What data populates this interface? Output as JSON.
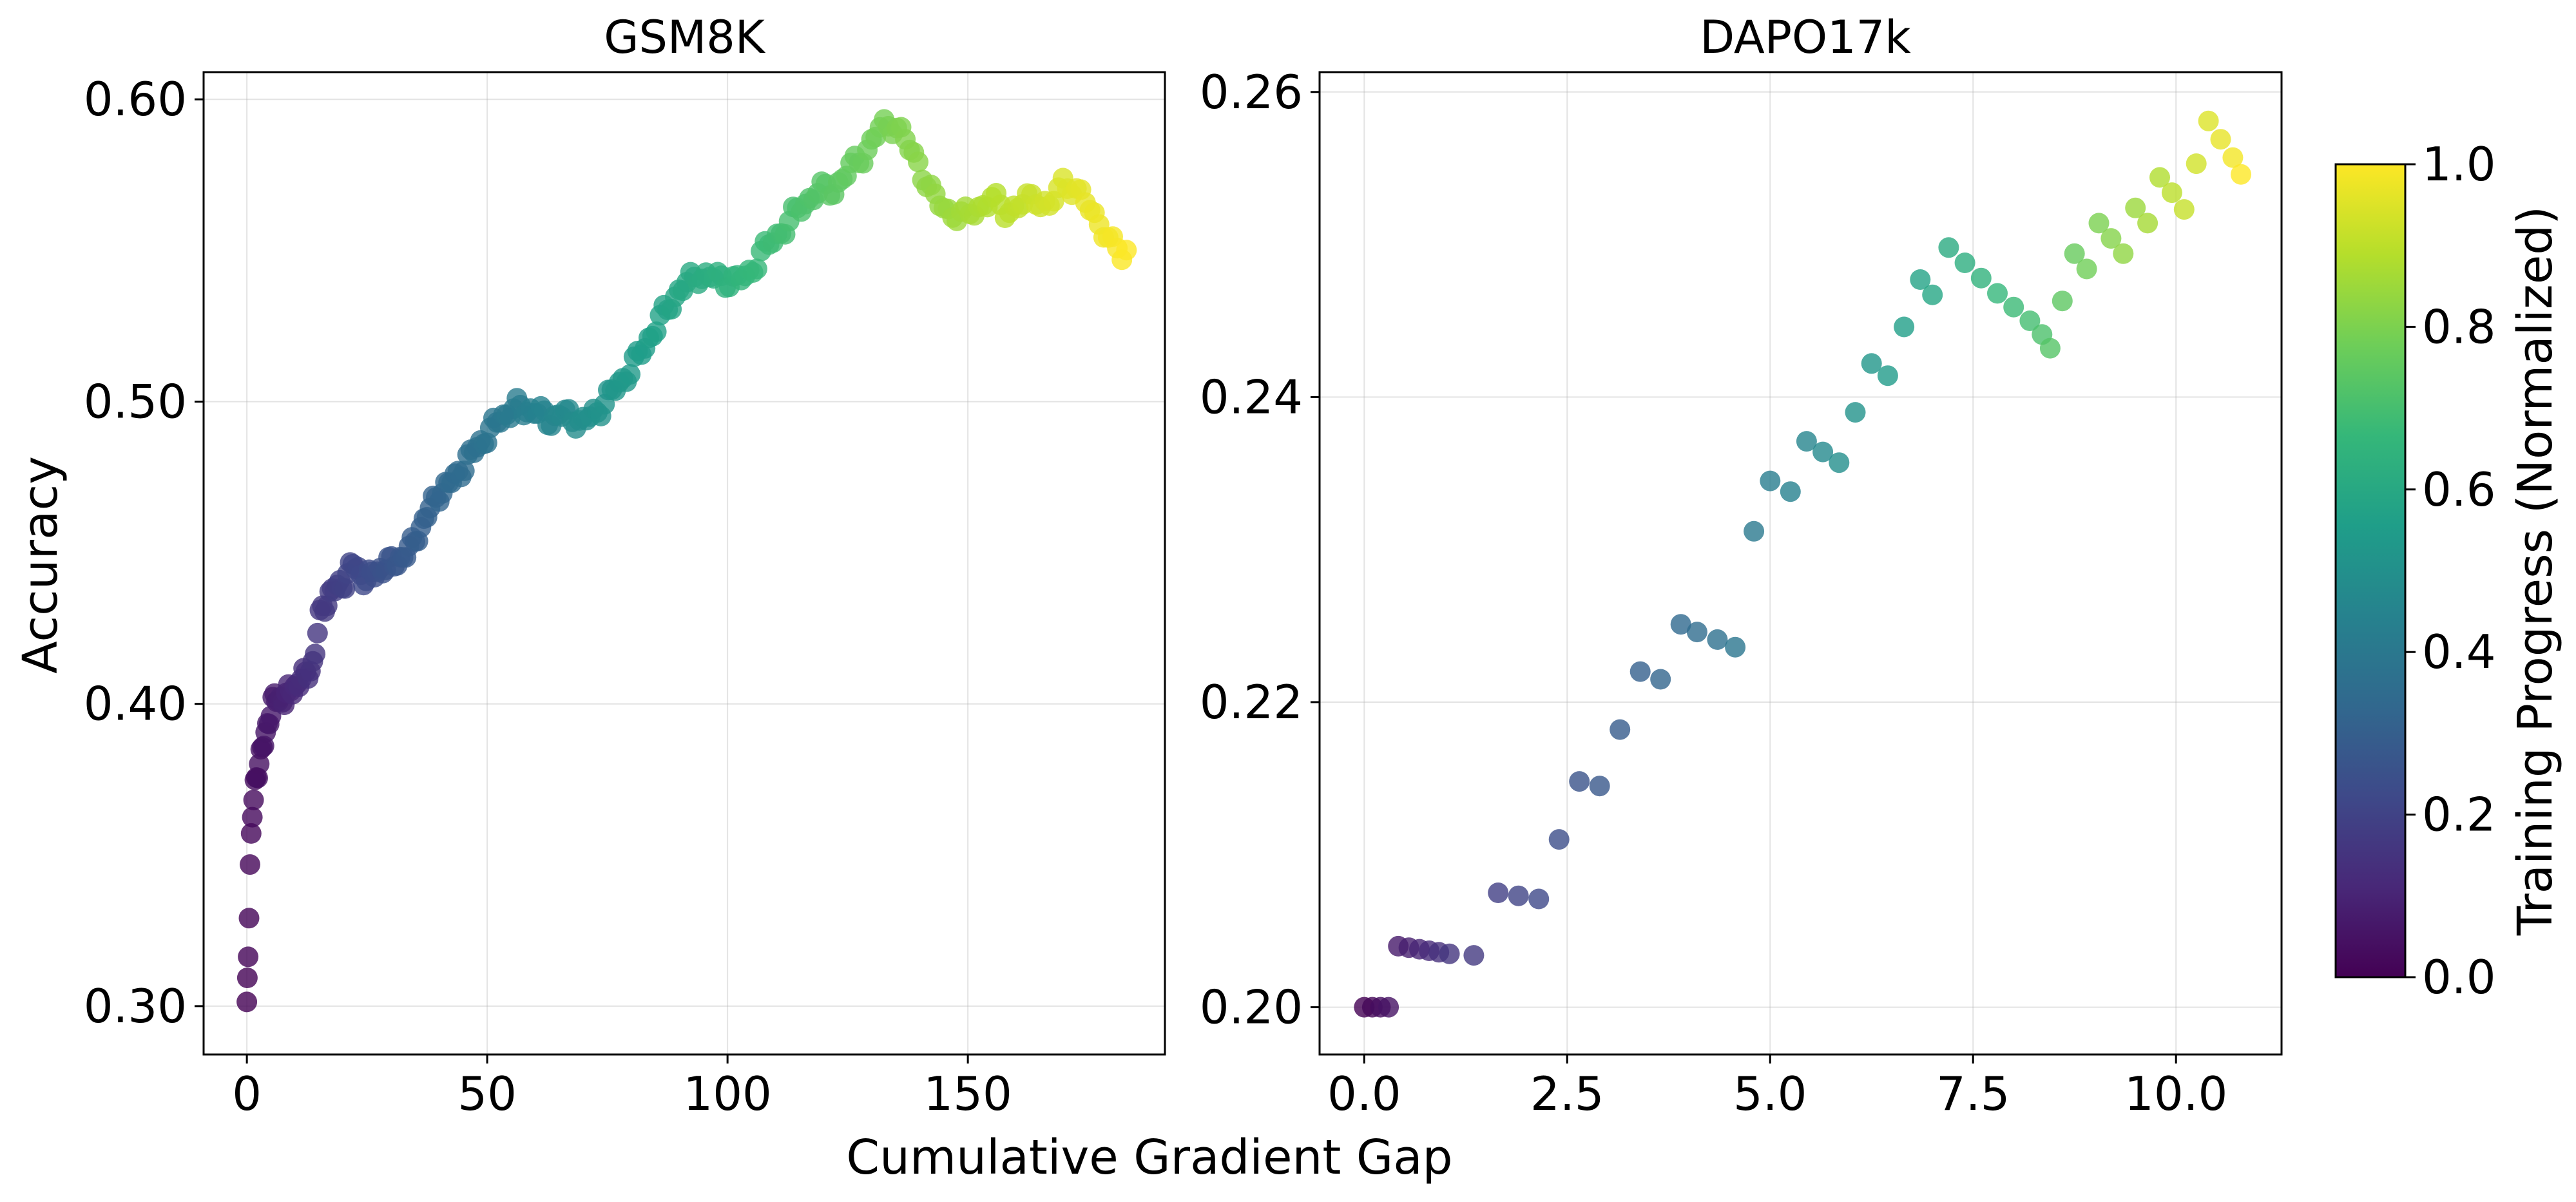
{
  "chart_data": [
    {
      "type": "scatter",
      "title": "GSM8K",
      "xlabel": "Cumulative Gradient Gap",
      "ylabel": "Accuracy",
      "xlim": [
        -9,
        191
      ],
      "ylim": [
        0.284,
        0.609
      ],
      "xticks": [
        0,
        50,
        100,
        150
      ],
      "xtick_labels": [
        "0",
        "50",
        "100",
        "150"
      ],
      "yticks": [
        0.3,
        0.4,
        0.5,
        0.6
      ],
      "ytick_labels": [
        "0.30",
        "0.40",
        "0.50",
        "0.60"
      ],
      "grid": true,
      "color_by": "training_progress",
      "anchors": [
        [
          0.0,
          0.3
        ],
        [
          0.3,
          0.32
        ],
        [
          0.6,
          0.345
        ],
        [
          1.0,
          0.36
        ],
        [
          1.6,
          0.372
        ],
        [
          2.5,
          0.381
        ],
        [
          3.5,
          0.386
        ],
        [
          4.5,
          0.395
        ],
        [
          5.5,
          0.401
        ],
        [
          8,
          0.402
        ],
        [
          10,
          0.406
        ],
        [
          12,
          0.409
        ],
        [
          14,
          0.414
        ],
        [
          15,
          0.428
        ],
        [
          17,
          0.436
        ],
        [
          20,
          0.44
        ],
        [
          22,
          0.446
        ],
        [
          25,
          0.441
        ],
        [
          28,
          0.445
        ],
        [
          31,
          0.447
        ],
        [
          34,
          0.451
        ],
        [
          36,
          0.458
        ],
        [
          38,
          0.464
        ],
        [
          40,
          0.47
        ],
        [
          43,
          0.474
        ],
        [
          46,
          0.481
        ],
        [
          50,
          0.489
        ],
        [
          53,
          0.495
        ],
        [
          56,
          0.498
        ],
        [
          60,
          0.497
        ],
        [
          63,
          0.494
        ],
        [
          66,
          0.496
        ],
        [
          70,
          0.493
        ],
        [
          73,
          0.497
        ],
        [
          76,
          0.503
        ],
        [
          80,
          0.511
        ],
        [
          83,
          0.519
        ],
        [
          86,
          0.527
        ],
        [
          90,
          0.537
        ],
        [
          94,
          0.542
        ],
        [
          97,
          0.541
        ],
        [
          101,
          0.54
        ],
        [
          104,
          0.541
        ],
        [
          107,
          0.549
        ],
        [
          111,
          0.556
        ],
        [
          115,
          0.564
        ],
        [
          119,
          0.57
        ],
        [
          122,
          0.57
        ],
        [
          126,
          0.578
        ],
        [
          129,
          0.583
        ],
        [
          132,
          0.591
        ],
        [
          135,
          0.592
        ],
        [
          137,
          0.586
        ],
        [
          140,
          0.578
        ],
        [
          143,
          0.567
        ],
        [
          146,
          0.563
        ],
        [
          149,
          0.561
        ],
        [
          152,
          0.564
        ],
        [
          155,
          0.567
        ],
        [
          158,
          0.563
        ],
        [
          161,
          0.565
        ],
        [
          164,
          0.568
        ],
        [
          167,
          0.564
        ],
        [
          170,
          0.573
        ],
        [
          172,
          0.571
        ],
        [
          174,
          0.567
        ],
        [
          176,
          0.562
        ],
        [
          178,
          0.558
        ],
        [
          180,
          0.552
        ],
        [
          182,
          0.548
        ],
        [
          183,
          0.55
        ]
      ],
      "n_points": 260
    },
    {
      "type": "scatter",
      "title": "DAPO17k",
      "xlabel": "",
      "ylabel": "",
      "xlim": [
        -0.55,
        11.3
      ],
      "ylim": [
        0.1969,
        0.2613
      ],
      "xticks": [
        0.0,
        2.5,
        5.0,
        7.5,
        10.0
      ],
      "xtick_labels": [
        "0.0",
        "2.5",
        "5.0",
        "7.5",
        "10.0"
      ],
      "yticks": [
        0.2,
        0.22,
        0.24,
        0.26
      ],
      "ytick_labels": [
        "0.20",
        "0.22",
        "0.24",
        "0.26"
      ],
      "grid": true,
      "color_by": "training_progress",
      "points": [
        [
          0.0,
          0.2
        ],
        [
          0.1,
          0.2
        ],
        [
          0.2,
          0.2
        ],
        [
          0.3,
          0.2
        ],
        [
          0.42,
          0.204
        ],
        [
          0.55,
          0.2039
        ],
        [
          0.68,
          0.2038
        ],
        [
          0.8,
          0.2037
        ],
        [
          0.92,
          0.2036
        ],
        [
          1.05,
          0.2035
        ],
        [
          1.35,
          0.2034
        ],
        [
          1.65,
          0.2075
        ],
        [
          1.9,
          0.2073
        ],
        [
          2.15,
          0.2071
        ],
        [
          2.4,
          0.211
        ],
        [
          2.65,
          0.2148
        ],
        [
          2.9,
          0.2145
        ],
        [
          3.15,
          0.2182
        ],
        [
          3.4,
          0.222
        ],
        [
          3.65,
          0.2215
        ],
        [
          3.9,
          0.2251
        ],
        [
          4.1,
          0.2246
        ],
        [
          4.35,
          0.2241
        ],
        [
          4.57,
          0.2236
        ],
        [
          4.8,
          0.2312
        ],
        [
          5.0,
          0.2345
        ],
        [
          5.25,
          0.2338
        ],
        [
          5.45,
          0.2371
        ],
        [
          5.65,
          0.2364
        ],
        [
          5.85,
          0.2357
        ],
        [
          6.05,
          0.239
        ],
        [
          6.25,
          0.2422
        ],
        [
          6.45,
          0.2414
        ],
        [
          6.65,
          0.2446
        ],
        [
          6.85,
          0.2477
        ],
        [
          7.0,
          0.2467
        ],
        [
          7.2,
          0.2498
        ],
        [
          7.4,
          0.2488
        ],
        [
          7.6,
          0.2478
        ],
        [
          7.8,
          0.2468
        ],
        [
          8.0,
          0.2459
        ],
        [
          8.2,
          0.245
        ],
        [
          8.35,
          0.2441
        ],
        [
          8.45,
          0.2432
        ],
        [
          8.6,
          0.2463
        ],
        [
          8.75,
          0.2494
        ],
        [
          8.9,
          0.2484
        ],
        [
          9.05,
          0.2514
        ],
        [
          9.2,
          0.2504
        ],
        [
          9.35,
          0.2494
        ],
        [
          9.5,
          0.2524
        ],
        [
          9.65,
          0.2514
        ],
        [
          9.8,
          0.2544
        ],
        [
          9.95,
          0.2534
        ],
        [
          10.1,
          0.2523
        ],
        [
          10.25,
          0.2553
        ],
        [
          10.4,
          0.2581
        ],
        [
          10.55,
          0.2569
        ],
        [
          10.7,
          0.2557
        ],
        [
          10.8,
          0.2546
        ]
      ]
    }
  ],
  "colorbar": {
    "label": "Training Progress (Normalized)",
    "min": 0.0,
    "max": 1.0,
    "ticks": [
      0.0,
      0.2,
      0.4,
      0.6,
      0.8,
      1.0
    ],
    "tick_labels": [
      "0.0",
      "0.2",
      "0.4",
      "0.6",
      "0.8",
      "1.0"
    ],
    "colormap": "viridis",
    "stops": [
      "#440154",
      "#482878",
      "#3e4989",
      "#31688e",
      "#26828e",
      "#1f9e89",
      "#35b779",
      "#6ece58",
      "#b5de2b",
      "#fde725"
    ]
  },
  "shared_xlabel": "Cumulative Gradient Gap"
}
